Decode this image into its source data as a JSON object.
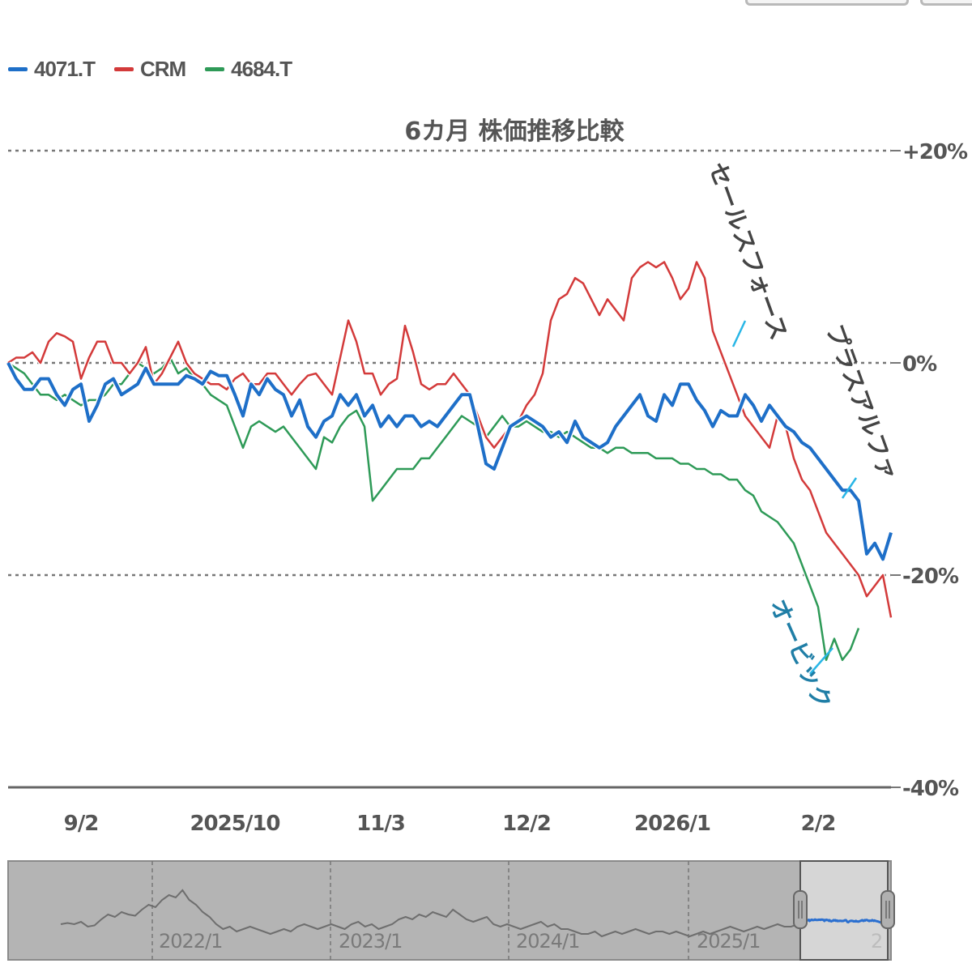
{
  "top_buttons": [
    "",
    ""
  ],
  "legend": [
    {
      "name": "4071.T",
      "color": "#1e6fc8"
    },
    {
      "name": "CRM",
      "color": "#d33a3a"
    },
    {
      "name": "4684.T",
      "color": "#2e9a57"
    }
  ],
  "chart_data": {
    "type": "line",
    "title": "6カ月 株価推移比較",
    "ylabel": "",
    "xlabel": "",
    "ylim": [
      -40,
      20
    ],
    "y_ticks": [
      {
        "value": 20,
        "label": "+20%"
      },
      {
        "value": 0,
        "label": "0%"
      },
      {
        "value": -20,
        "label": "-20%"
      },
      {
        "value": -40,
        "label": "-40%"
      }
    ],
    "x_ticks": [
      {
        "index": 9,
        "label": "9/2"
      },
      {
        "index": 28,
        "label": "2025/10"
      },
      {
        "index": 46,
        "label": "11/3"
      },
      {
        "index": 64,
        "label": "12/2"
      },
      {
        "index": 82,
        "label": "2026/1"
      },
      {
        "index": 100,
        "label": "2/2"
      }
    ],
    "series": [
      {
        "name": "4071.T",
        "color": "#1e6fc8",
        "values": [
          0,
          -1.5,
          -2.5,
          -2.5,
          -1.5,
          -1.5,
          -3,
          -4,
          -2.5,
          -2,
          -5.5,
          -4,
          -2,
          -1.5,
          -3,
          -2.5,
          -2,
          -0.5,
          -2,
          -2,
          -2,
          -2,
          -1.2,
          -1.5,
          -2,
          -0.8,
          -1.2,
          -1.2,
          -3,
          -5,
          -2,
          -3,
          -1.5,
          -2.5,
          -3,
          -5,
          -3.5,
          -6,
          -7,
          -5.5,
          -5,
          -3,
          -4,
          -3,
          -5,
          -4,
          -6,
          -5,
          -6,
          -5,
          -5,
          -6,
          -5.5,
          -6,
          -5,
          -4,
          -3,
          -3,
          -6,
          -9.5,
          -10,
          -8,
          -6,
          -5.5,
          -5,
          -5.5,
          -6,
          -7,
          -6.5,
          -7.5,
          -5.5,
          -7,
          -7.5,
          -8,
          -7.5,
          -6,
          -5,
          -4,
          -3,
          -5,
          -5.5,
          -3,
          -4,
          -2,
          -2,
          -3.5,
          -4.5,
          -6,
          -4.5,
          -5,
          -5,
          -3,
          -4,
          -5.5,
          -4,
          -5,
          -6,
          -6.5,
          -7.5,
          -8,
          -9,
          -10,
          -11,
          -12,
          -12,
          -13,
          -18,
          -17,
          -18.5,
          -16
        ]
      },
      {
        "name": "CRM",
        "color": "#d33a3a",
        "values": [
          0,
          0.5,
          0.5,
          1,
          0,
          2,
          2.8,
          2.5,
          2,
          -1.5,
          0.5,
          2,
          2,
          0,
          0,
          -1,
          0,
          1.5,
          -2,
          -1,
          0.5,
          2,
          0,
          -1,
          -1.5,
          -2,
          -2,
          -2.5,
          -1.5,
          -1,
          -2,
          -2,
          -1,
          -1,
          -2,
          -3,
          -2,
          -1.2,
          -1,
          -2,
          -3,
          0.5,
          4,
          2,
          -1,
          -1,
          -3,
          -2,
          -1.5,
          3.5,
          1,
          -2,
          -2.5,
          -2,
          -2,
          -1,
          -2,
          -3,
          -5,
          -7,
          -8,
          -7,
          -6,
          -5.5,
          -4,
          -3,
          -1,
          4,
          6,
          6.5,
          8,
          7.5,
          6,
          4.5,
          6,
          5,
          4,
          8,
          9,
          9.5,
          9,
          9.5,
          8,
          6,
          7,
          9.5,
          8,
          3,
          1,
          -1,
          -3,
          -5,
          -6,
          -7,
          -8,
          -5,
          -6,
          -9,
          -11,
          -12,
          -14,
          -16,
          -17,
          -18,
          -19,
          -20,
          -22,
          -21,
          -20,
          -24
        ]
      },
      {
        "name": "4684.T",
        "color": "#2e9a57",
        "values": [
          0,
          -0.5,
          -1,
          -2,
          -3,
          -3,
          -3.5,
          -3,
          -3.5,
          -4,
          -3.5,
          -3.5,
          -3,
          -2,
          -2,
          -1,
          0,
          -0.5,
          -1,
          -0.5,
          0.5,
          -1,
          -0.5,
          -1.5,
          -2,
          -3,
          -3.5,
          -4,
          -6,
          -8,
          -6,
          -5.5,
          -6,
          -6.5,
          -6,
          -7,
          -8,
          -9,
          -10,
          -7,
          -7.5,
          -6,
          -5,
          -4.5,
          -6,
          -13,
          -12,
          -11,
          -10,
          -10,
          -10,
          -9,
          -9,
          -8,
          -7,
          -6,
          -5,
          -5.5,
          -6,
          -7,
          -6,
          -5,
          -6,
          -6,
          -5.5,
          -6,
          -6.5,
          -6.5,
          -7,
          -6.5,
          -7,
          -7.5,
          -8,
          -8,
          -8.5,
          -8,
          -8,
          -8.5,
          -8.5,
          -8.5,
          -9,
          -9,
          -9,
          -9.5,
          -9.5,
          -10,
          -10,
          -10.5,
          -10.5,
          -11,
          -11,
          -12,
          -12.5,
          -14,
          -14.5,
          -15,
          -16,
          -17,
          -19,
          -21,
          -23,
          -28,
          -26,
          -28,
          -27,
          -25
        ]
      }
    ],
    "annotations": [
      {
        "text": "セールスフォース",
        "series": "CRM"
      },
      {
        "text": "プラスアルファ",
        "series": "4071.T"
      },
      {
        "text": "オービック",
        "series": "4684.T"
      }
    ],
    "navigator": {
      "labels": [
        "2022/1",
        "2023/1",
        "2024/1",
        "2025/1",
        "2"
      ],
      "values": [
        -2,
        -1.5,
        -2,
        -1,
        -3,
        -2.5,
        0,
        2,
        1,
        3,
        2,
        1.5,
        4,
        6,
        5,
        8,
        10,
        9,
        12,
        8,
        6,
        3,
        1,
        -2,
        -4,
        -3,
        -5,
        -4,
        -3,
        -4,
        -5,
        -6,
        -5,
        -4,
        -5,
        -3,
        -2,
        -3,
        -4,
        -3,
        -2,
        -3,
        -4,
        -2,
        -1,
        -3,
        -2,
        -4,
        -3,
        -2,
        0,
        1,
        0,
        2,
        1,
        3,
        2,
        1,
        4,
        2,
        0,
        -1,
        0,
        1,
        -2,
        -3,
        -2,
        -3,
        -4,
        -3,
        -2,
        -1,
        -3,
        -2,
        -4,
        -4,
        -5,
        -6,
        -6,
        -5,
        -7,
        -6,
        -5,
        -6,
        -5,
        -4,
        -5,
        -6,
        -5,
        -5,
        -6,
        -5,
        -6,
        -7,
        -6,
        -5,
        -6,
        -5,
        -4,
        -3,
        -4,
        -5,
        -4,
        -3,
        -4,
        -3,
        -2,
        -3,
        -3,
        -2
      ]
    }
  }
}
